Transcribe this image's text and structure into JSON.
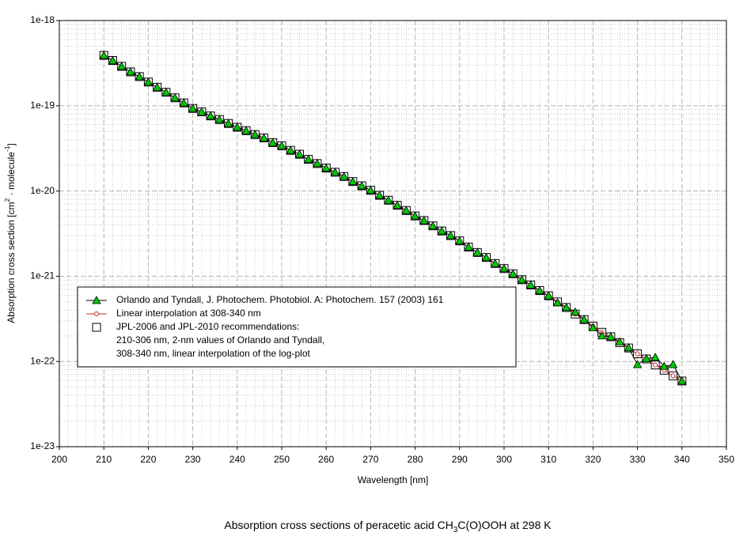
{
  "chart_data": {
    "type": "line",
    "title": [
      "Absorption cross sections of peracetic acid CH",
      "3",
      "C(O)OOH at 298 K"
    ],
    "x_label": "Wavelength [nm]",
    "y_label": [
      "Absorption cross section [cm",
      "2",
      " · molecule",
      "-1",
      "]"
    ],
    "log_y": true,
    "grid": true,
    "legend": "lower left",
    "xlim": [
      200,
      350
    ],
    "xticks": [
      200,
      210,
      220,
      230,
      240,
      250,
      260,
      270,
      280,
      290,
      300,
      310,
      320,
      330,
      340,
      350
    ],
    "ylim": [
      1e-23,
      1e-18
    ],
    "yticks": [
      {
        "value": 1e-23,
        "label": "1e-23"
      },
      {
        "value": 1e-22,
        "label": "1e-22"
      },
      {
        "value": 1e-21,
        "label": "1e-21"
      },
      {
        "value": 1e-20,
        "label": "1e-20"
      },
      {
        "value": 1e-19,
        "label": "1e-19"
      },
      {
        "value": 1e-18,
        "label": "1e-18"
      }
    ],
    "series": [
      {
        "name": "Orlando and Tyndall, J. Photochem. Photobiol. A: Photochem. 157 (2003) 161",
        "color": "#00c800",
        "line_color": "#000000",
        "marker": "triangle",
        "line": true,
        "x": [
          210,
          212,
          214,
          216,
          218,
          220,
          222,
          224,
          226,
          228,
          230,
          232,
          234,
          236,
          238,
          240,
          242,
          244,
          246,
          248,
          250,
          252,
          254,
          256,
          258,
          260,
          262,
          264,
          266,
          268,
          270,
          272,
          274,
          276,
          278,
          280,
          282,
          284,
          286,
          288,
          290,
          292,
          294,
          296,
          298,
          300,
          302,
          304,
          306,
          308,
          310,
          312,
          314,
          316,
          318,
          320,
          322,
          324,
          326,
          328,
          330,
          332,
          334,
          336,
          338,
          340
        ],
        "values": [
          3.9e-19,
          3.4e-19,
          2.9e-19,
          2.5e-19,
          2.2e-19,
          1.9e-19,
          1.65e-19,
          1.44e-19,
          1.24e-19,
          1.08e-19,
          9.3e-20,
          8.5e-20,
          7.6e-20,
          6.9e-20,
          6.2e-20,
          5.6e-20,
          5.1e-20,
          4.6e-20,
          4.2e-20,
          3.7e-20,
          3.4e-20,
          3e-20,
          2.7e-20,
          2.35e-20,
          2.1e-20,
          1.86e-20,
          1.66e-20,
          1.48e-20,
          1.29e-20,
          1.15e-20,
          1.02e-20,
          8.9e-21,
          7.8e-21,
          6.8e-21,
          5.9e-21,
          5.1e-21,
          4.5e-21,
          3.9e-21,
          3.4e-21,
          3e-21,
          2.6e-21,
          2.2e-21,
          1.9e-21,
          1.66e-21,
          1.41e-21,
          1.23e-21,
          1.07e-21,
          9.1e-22,
          7.9e-22,
          6.8e-22,
          5.9e-22,
          4.9e-22,
          4.3e-22,
          3.8e-22,
          3.1e-22,
          2.5e-22,
          2e-22,
          1.95e-22,
          1.7e-22,
          1.45e-22,
          9.2e-23,
          1.08e-22,
          1.12e-22,
          8.8e-23,
          9.2e-23,
          5.9e-23
        ]
      },
      {
        "name": "Linear interpolation at 308-340 nm",
        "color": "#c03030",
        "line_color": "#c03030",
        "marker": "circle",
        "line": true,
        "x": [
          308,
          310,
          312,
          314,
          316,
          318,
          320,
          322,
          324,
          326,
          328,
          330,
          332,
          334,
          336,
          338,
          340
        ],
        "values": [
          6.8e-22,
          5.9e-22,
          5e-22,
          4.3e-22,
          3.6e-22,
          3.1e-22,
          2.6e-22,
          2.2e-22,
          1.95e-22,
          1.66e-22,
          1.44e-22,
          1.23e-22,
          1.07e-22,
          9.1e-23,
          7.9e-23,
          6.8e-23,
          5.9e-23
        ]
      },
      {
        "name": "JPL-2006 and JPL-2010 recommendations:",
        "notes": [
          "210-306 nm, 2-nm values of Orlando and Tyndall,",
          "308-340 nm, linear interpolation of the log-plot"
        ],
        "color": "#000000",
        "marker": "square",
        "line": false,
        "x": [
          210,
          212,
          214,
          216,
          218,
          220,
          222,
          224,
          226,
          228,
          230,
          232,
          234,
          236,
          238,
          240,
          242,
          244,
          246,
          248,
          250,
          252,
          254,
          256,
          258,
          260,
          262,
          264,
          266,
          268,
          270,
          272,
          274,
          276,
          278,
          280,
          282,
          284,
          286,
          288,
          290,
          292,
          294,
          296,
          298,
          300,
          302,
          304,
          306,
          308,
          310,
          312,
          314,
          316,
          318,
          320,
          322,
          324,
          326,
          328,
          330,
          332,
          334,
          336,
          338,
          340
        ],
        "values": [
          3.9e-19,
          3.4e-19,
          2.9e-19,
          2.5e-19,
          2.2e-19,
          1.9e-19,
          1.65e-19,
          1.44e-19,
          1.24e-19,
          1.08e-19,
          9.3e-20,
          8.5e-20,
          7.6e-20,
          6.9e-20,
          6.2e-20,
          5.6e-20,
          5.1e-20,
          4.6e-20,
          4.2e-20,
          3.7e-20,
          3.4e-20,
          3e-20,
          2.7e-20,
          2.35e-20,
          2.1e-20,
          1.86e-20,
          1.66e-20,
          1.48e-20,
          1.29e-20,
          1.15e-20,
          1.02e-20,
          8.9e-21,
          7.8e-21,
          6.8e-21,
          5.9e-21,
          5.1e-21,
          4.5e-21,
          3.9e-21,
          3.4e-21,
          3e-21,
          2.6e-21,
          2.2e-21,
          1.9e-21,
          1.66e-21,
          1.41e-21,
          1.23e-21,
          1.07e-21,
          9.1e-22,
          7.9e-22,
          6.8e-22,
          5.9e-22,
          5e-22,
          4.3e-22,
          3.6e-22,
          3.1e-22,
          2.6e-22,
          2.2e-22,
          1.95e-22,
          1.66e-22,
          1.44e-22,
          1.23e-22,
          1.07e-22,
          9.1e-23,
          7.9e-23,
          6.8e-23,
          5.9e-23
        ]
      }
    ]
  }
}
